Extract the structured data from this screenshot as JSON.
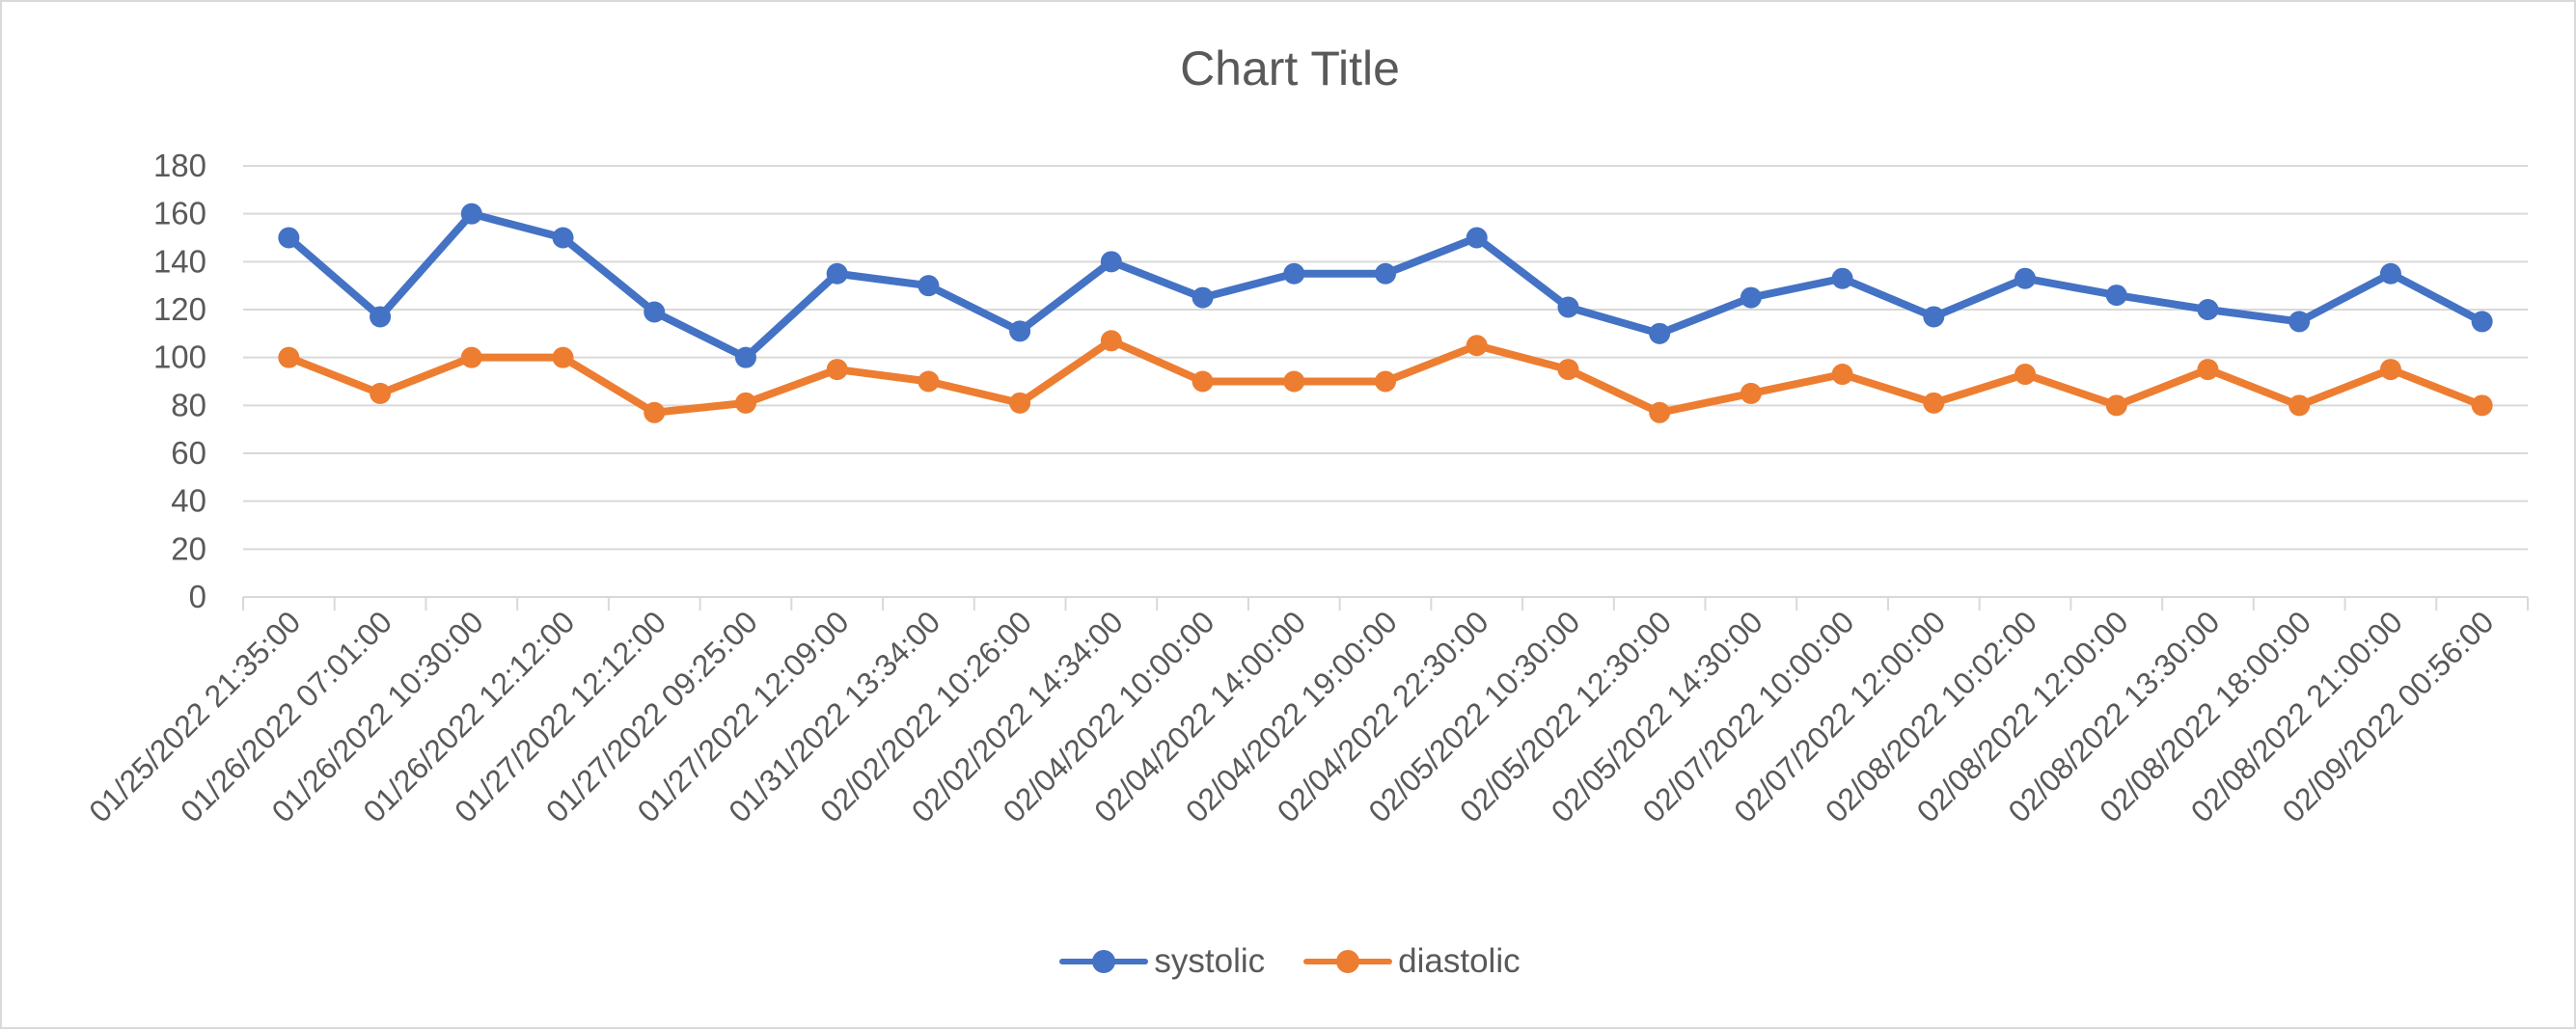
{
  "chart_data": {
    "type": "line",
    "title": "Chart Title",
    "categories": [
      "01/25/2022 21:35:00",
      "01/26/2022 07:01:00",
      "01/26/2022 10:30:00",
      "01/26/2022 12:12:00",
      "01/27/2022 12:12:00",
      "01/27/2022 09:25:00",
      "01/27/2022 12:09:00",
      "01/31/2022 13:34:00",
      "02/02/2022 10:26:00",
      "02/02/2022 14:34:00",
      "02/04/2022 10:00:00",
      "02/04/2022 14:00:00",
      "02/04/2022 19:00:00",
      "02/04/2022 22:30:00",
      "02/05/2022 10:30:00",
      "02/05/2022 12:30:00",
      "02/05/2022 14:30:00",
      "02/07/2022 10:00:00",
      "02/07/2022 12:00:00",
      "02/08/2022 10:02:00",
      "02/08/2022 12:00:00",
      "02/08/2022 13:30:00",
      "02/08/2022 18:00:00",
      "02/08/2022 21:00:00",
      "02/09/2022 00:56:00"
    ],
    "series": [
      {
        "name": "systolic",
        "color": "#4472c4",
        "values": [
          150,
          117,
          160,
          150,
          119,
          100,
          135,
          130,
          111,
          140,
          125,
          135,
          135,
          150,
          121,
          110,
          125,
          133,
          117,
          133,
          126,
          120,
          115,
          135,
          115
        ]
      },
      {
        "name": "diastolic",
        "color": "#ed7d31",
        "values": [
          100,
          85,
          100,
          100,
          77,
          81,
          95,
          90,
          81,
          107,
          90,
          90,
          90,
          105,
          95,
          77,
          85,
          93,
          81,
          93,
          80,
          95,
          80,
          95,
          80
        ]
      }
    ],
    "ylim": [
      0,
      180
    ],
    "yticks": [
      0,
      20,
      40,
      60,
      80,
      100,
      120,
      140,
      160,
      180
    ],
    "grid": true,
    "legend": "bottom",
    "gridColor": "#d9d9d9",
    "textColor": "#595959"
  }
}
